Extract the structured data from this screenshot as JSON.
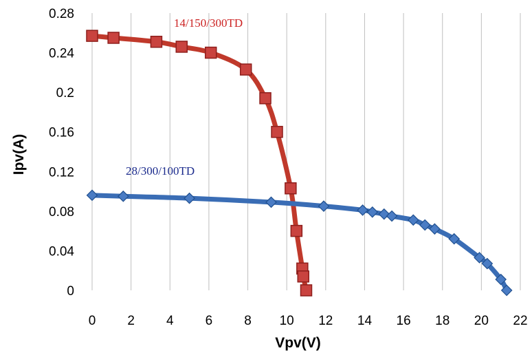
{
  "chart_data": {
    "type": "line",
    "xlabel": "Vpv(V)",
    "ylabel": "Ipv(A)",
    "xlim": [
      0,
      22
    ],
    "ylim": [
      0,
      0.28
    ],
    "xticks": [
      "0",
      "2",
      "4",
      "6",
      "8",
      "10",
      "12",
      "14",
      "16",
      "18",
      "20",
      "22"
    ],
    "yticks": [
      "0",
      "0.04",
      "0.08",
      "0.12",
      "0.16",
      "0.2",
      "0.24",
      "0.28"
    ],
    "grid": "vertical",
    "series": [
      {
        "name": "14/150/300TD",
        "color": "#c0392b",
        "marker": "square",
        "points": [
          [
            0.0,
            0.257
          ],
          [
            1.1,
            0.255
          ],
          [
            3.3,
            0.251
          ],
          [
            4.6,
            0.246
          ],
          [
            6.1,
            0.24
          ],
          [
            7.9,
            0.223
          ],
          [
            8.9,
            0.194
          ],
          [
            9.5,
            0.16
          ],
          [
            10.2,
            0.103
          ],
          [
            10.5,
            0.06
          ],
          [
            10.8,
            0.022
          ],
          [
            10.85,
            0.014
          ],
          [
            11.0,
            0.0
          ]
        ]
      },
      {
        "name": "28/300/100TD",
        "color": "#3a6db5",
        "marker": "diamond",
        "points": [
          [
            0.0,
            0.096
          ],
          [
            1.6,
            0.095
          ],
          [
            5.0,
            0.093
          ],
          [
            9.2,
            0.089
          ],
          [
            11.9,
            0.085
          ],
          [
            13.9,
            0.081
          ],
          [
            14.4,
            0.079
          ],
          [
            15.0,
            0.077
          ],
          [
            15.4,
            0.075
          ],
          [
            16.5,
            0.071
          ],
          [
            17.1,
            0.066
          ],
          [
            17.6,
            0.062
          ],
          [
            18.6,
            0.052
          ],
          [
            19.9,
            0.033
          ],
          [
            20.3,
            0.027
          ],
          [
            21.0,
            0.011
          ],
          [
            21.3,
            0.0
          ]
        ]
      }
    ]
  }
}
